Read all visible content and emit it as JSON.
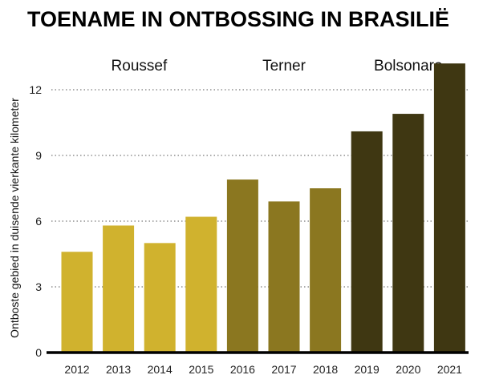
{
  "chart_data": {
    "type": "bar",
    "title": "TOENAME IN ONTBOSSING IN BRASILIË",
    "ylabel": "Ontboste gebied in duisende vierkante kilometer",
    "xlabel": "",
    "ylim": [
      0,
      12
    ],
    "yticks": [
      "0",
      "3",
      "6",
      "9",
      "12"
    ],
    "grid": true,
    "categories": [
      "2012",
      "2013",
      "2014",
      "2015",
      "2016",
      "2017",
      "2018",
      "2019",
      "2020",
      "2021"
    ],
    "values": [
      4.6,
      5.8,
      5.0,
      6.2,
      7.9,
      6.9,
      7.5,
      10.1,
      10.9,
      13.2
    ],
    "groups": [
      {
        "label": "Roussef",
        "color": "#d0b22e",
        "categories": [
          "2012",
          "2013",
          "2014",
          "2015"
        ]
      },
      {
        "label": "Terner",
        "color": "#8b7720",
        "categories": [
          "2016",
          "2017",
          "2018"
        ]
      },
      {
        "label": "Bolsonaro",
        "color": "#3f3712",
        "categories": [
          "2019",
          "2020",
          "2021"
        ]
      }
    ]
  }
}
